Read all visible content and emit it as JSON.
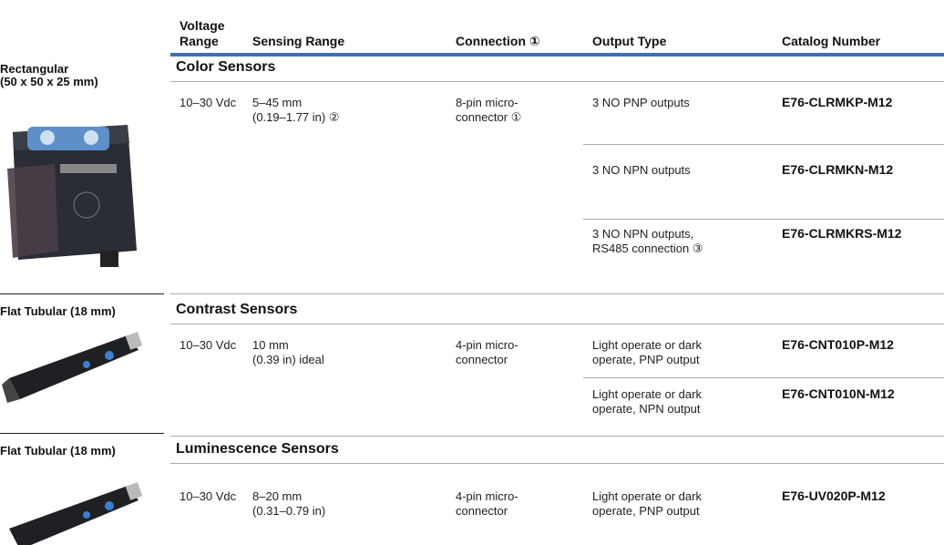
{
  "header": {
    "columns": [
      [
        "Voltage",
        "Range"
      ],
      [
        "Sensing Range"
      ],
      [
        "Connection ①"
      ],
      [
        "Output Type"
      ],
      [
        "Catalog Number"
      ]
    ]
  },
  "groups": [
    {
      "label": [
        "Rectangular",
        "(50 x 50 x 25 mm)"
      ],
      "heading": "Color Sensors",
      "rows": [
        {
          "voltage": [
            "10–30 Vdc"
          ],
          "sensing": [
            "5–45 mm",
            "(0.19–1.77 in) ②"
          ],
          "connection": [
            "8-pin micro-",
            "connector ①"
          ],
          "output": [
            "3 NO PNP outputs"
          ],
          "catalog": [
            "E76-CLRMKP-M12"
          ]
        },
        {
          "output": [
            "3 NO NPN outputs"
          ],
          "catalog": [
            "E76-CLRMKN-M12"
          ]
        },
        {
          "output": [
            "3 NO NPN outputs,",
            "RS485 connection ③"
          ],
          "catalog": [
            "E76-CLRMKRS-M12"
          ]
        }
      ]
    },
    {
      "label": [
        "Flat Tubular (18 mm)"
      ],
      "heading": "Contrast Sensors",
      "rows": [
        {
          "voltage": [
            "10–30 Vdc"
          ],
          "sensing": [
            "10 mm",
            "(0.39 in) ideal"
          ],
          "connection": [
            "4-pin micro-",
            "connector"
          ],
          "output": [
            "Light operate or dark",
            "operate, PNP output"
          ],
          "catalog": [
            "E76-CNT010P-M12"
          ]
        },
        {
          "output": [
            "Light operate or dark",
            "operate, NPN output"
          ],
          "catalog": [
            "E76-CNT010N-M12"
          ]
        }
      ]
    },
    {
      "label": [
        "Flat Tubular (18 mm)"
      ],
      "heading": "Luminescence Sensors",
      "rows": [
        {
          "voltage": [
            "10–30 Vdc"
          ],
          "sensing": [
            "8–20 mm",
            "(0.31–0.79 in)"
          ],
          "connection": [
            "4-pin micro-",
            "connector"
          ],
          "output": [
            "Light operate or dark",
            "operate, PNP output"
          ],
          "catalog": [
            "E76-UV020P-M12"
          ]
        }
      ]
    }
  ]
}
